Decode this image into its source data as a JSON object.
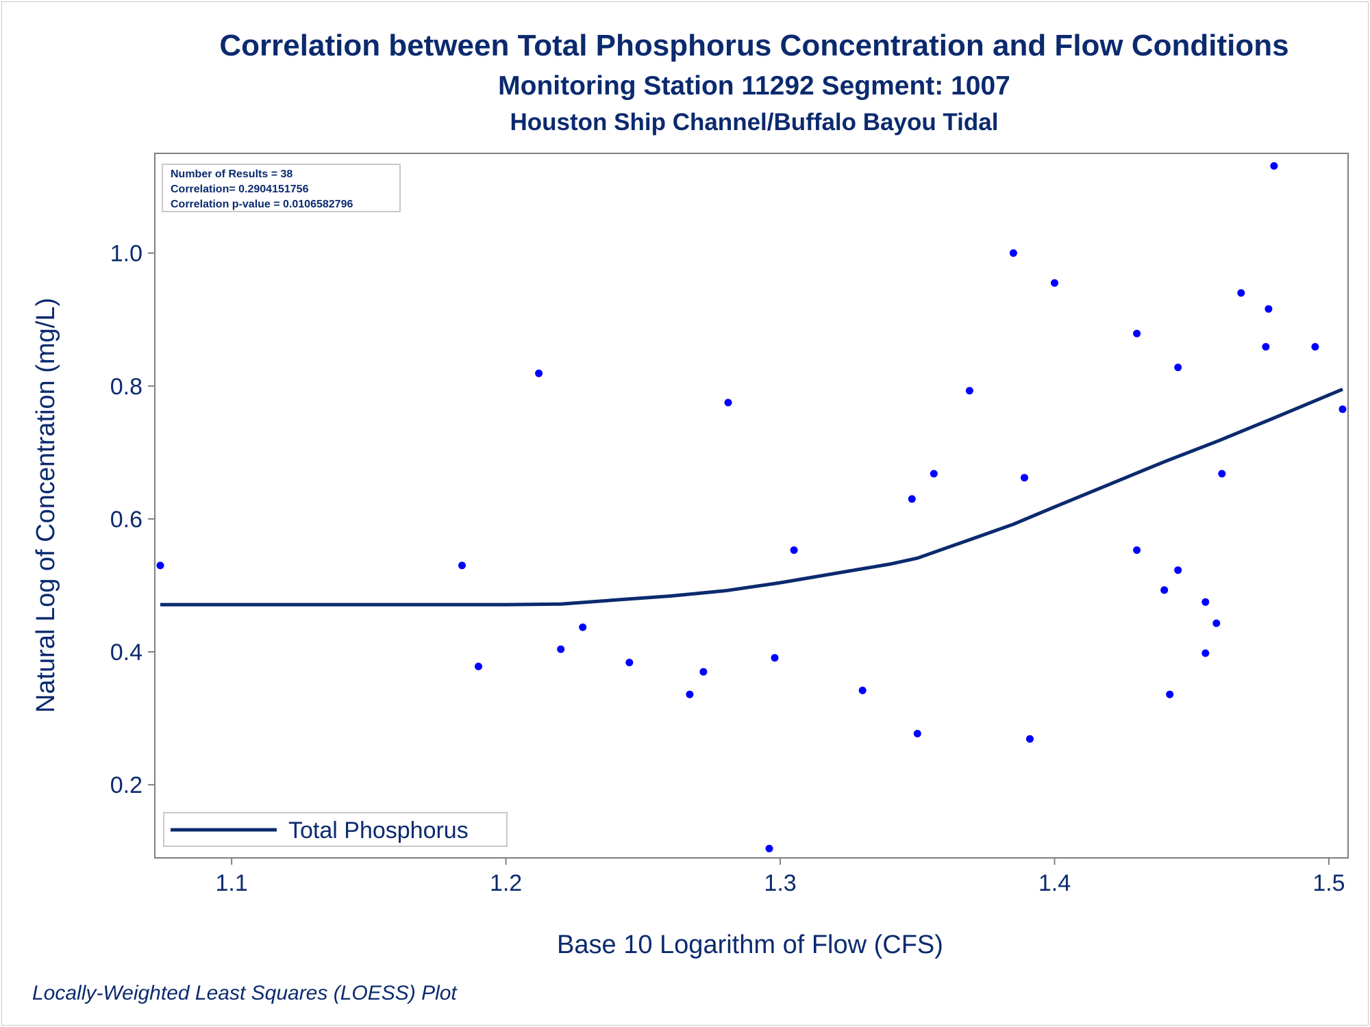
{
  "chart_data": {
    "type": "scatter",
    "title": "Correlation between Total Phosphorus Concentration and Flow Conditions",
    "subtitle": "Monitoring Station 11292 Segment: 1007",
    "subtitle2": "Houston Ship Channel/Buffalo Bayou Tidal",
    "xlabel": "Base 10 Logarithm of Flow (CFS)",
    "ylabel": "Natural Log of Concentration (mg/L)",
    "xlim": [
      1.072,
      1.507
    ],
    "ylim": [
      0.09,
      1.15
    ],
    "xticks": [
      1.1,
      1.2,
      1.3,
      1.4,
      1.5
    ],
    "xtick_labels": [
      "1.1",
      "1.2",
      "1.3",
      "1.4",
      "1.5"
    ],
    "yticks": [
      0.2,
      0.4,
      0.6,
      0.8,
      1.0
    ],
    "ytick_labels": [
      "0.2",
      "0.4",
      "0.6",
      "0.8",
      "1.0"
    ],
    "grid": false,
    "stats": [
      "Number of Results = 38",
      "Correlation= 0.2904151756",
      "Correlation p-value = 0.0106582796"
    ],
    "legend": {
      "position": "bottom-left",
      "label": "Total Phosphorus"
    },
    "footnote": "Locally-Weighted Least Squares (LOESS) Plot",
    "colors": {
      "points": "#0000ff",
      "line": "#0b2a6e",
      "text": "#0b2a6e",
      "axis": "#7f7f7f"
    },
    "points": [
      {
        "x": 1.074,
        "y": 0.53
      },
      {
        "x": 1.184,
        "y": 0.53
      },
      {
        "x": 1.19,
        "y": 0.378
      },
      {
        "x": 1.212,
        "y": 0.819
      },
      {
        "x": 1.22,
        "y": 0.404
      },
      {
        "x": 1.228,
        "y": 0.437
      },
      {
        "x": 1.245,
        "y": 0.384
      },
      {
        "x": 1.267,
        "y": 0.336
      },
      {
        "x": 1.272,
        "y": 0.37
      },
      {
        "x": 1.281,
        "y": 0.775
      },
      {
        "x": 1.296,
        "y": 0.104
      },
      {
        "x": 1.298,
        "y": 0.391
      },
      {
        "x": 1.305,
        "y": 0.553
      },
      {
        "x": 1.33,
        "y": 0.342
      },
      {
        "x": 1.348,
        "y": 0.63
      },
      {
        "x": 1.35,
        "y": 0.277
      },
      {
        "x": 1.356,
        "y": 0.668
      },
      {
        "x": 1.369,
        "y": 0.793
      },
      {
        "x": 1.385,
        "y": 1.0
      },
      {
        "x": 1.389,
        "y": 0.662
      },
      {
        "x": 1.391,
        "y": 0.269
      },
      {
        "x": 1.4,
        "y": 0.955
      },
      {
        "x": 1.43,
        "y": 0.879
      },
      {
        "x": 1.43,
        "y": 0.553
      },
      {
        "x": 1.44,
        "y": 0.493
      },
      {
        "x": 1.442,
        "y": 0.336
      },
      {
        "x": 1.445,
        "y": 0.828
      },
      {
        "x": 1.445,
        "y": 0.523
      },
      {
        "x": 1.455,
        "y": 0.475
      },
      {
        "x": 1.455,
        "y": 0.398
      },
      {
        "x": 1.459,
        "y": 0.443
      },
      {
        "x": 1.461,
        "y": 0.668
      },
      {
        "x": 1.468,
        "y": 0.94
      },
      {
        "x": 1.477,
        "y": 0.859
      },
      {
        "x": 1.478,
        "y": 0.916
      },
      {
        "x": 1.48,
        "y": 1.131
      },
      {
        "x": 1.495,
        "y": 0.859
      },
      {
        "x": 1.505,
        "y": 0.765
      }
    ],
    "loess": [
      {
        "x": 1.074,
        "y": 0.471
      },
      {
        "x": 1.2,
        "y": 0.471
      },
      {
        "x": 1.22,
        "y": 0.472
      },
      {
        "x": 1.24,
        "y": 0.478
      },
      {
        "x": 1.26,
        "y": 0.484
      },
      {
        "x": 1.28,
        "y": 0.492
      },
      {
        "x": 1.3,
        "y": 0.504
      },
      {
        "x": 1.32,
        "y": 0.518
      },
      {
        "x": 1.34,
        "y": 0.532
      },
      {
        "x": 1.35,
        "y": 0.541
      },
      {
        "x": 1.37,
        "y": 0.57
      },
      {
        "x": 1.385,
        "y": 0.592
      },
      {
        "x": 1.4,
        "y": 0.618
      },
      {
        "x": 1.42,
        "y": 0.652
      },
      {
        "x": 1.44,
        "y": 0.686
      },
      {
        "x": 1.46,
        "y": 0.718
      },
      {
        "x": 1.48,
        "y": 0.752
      },
      {
        "x": 1.505,
        "y": 0.795
      }
    ]
  }
}
